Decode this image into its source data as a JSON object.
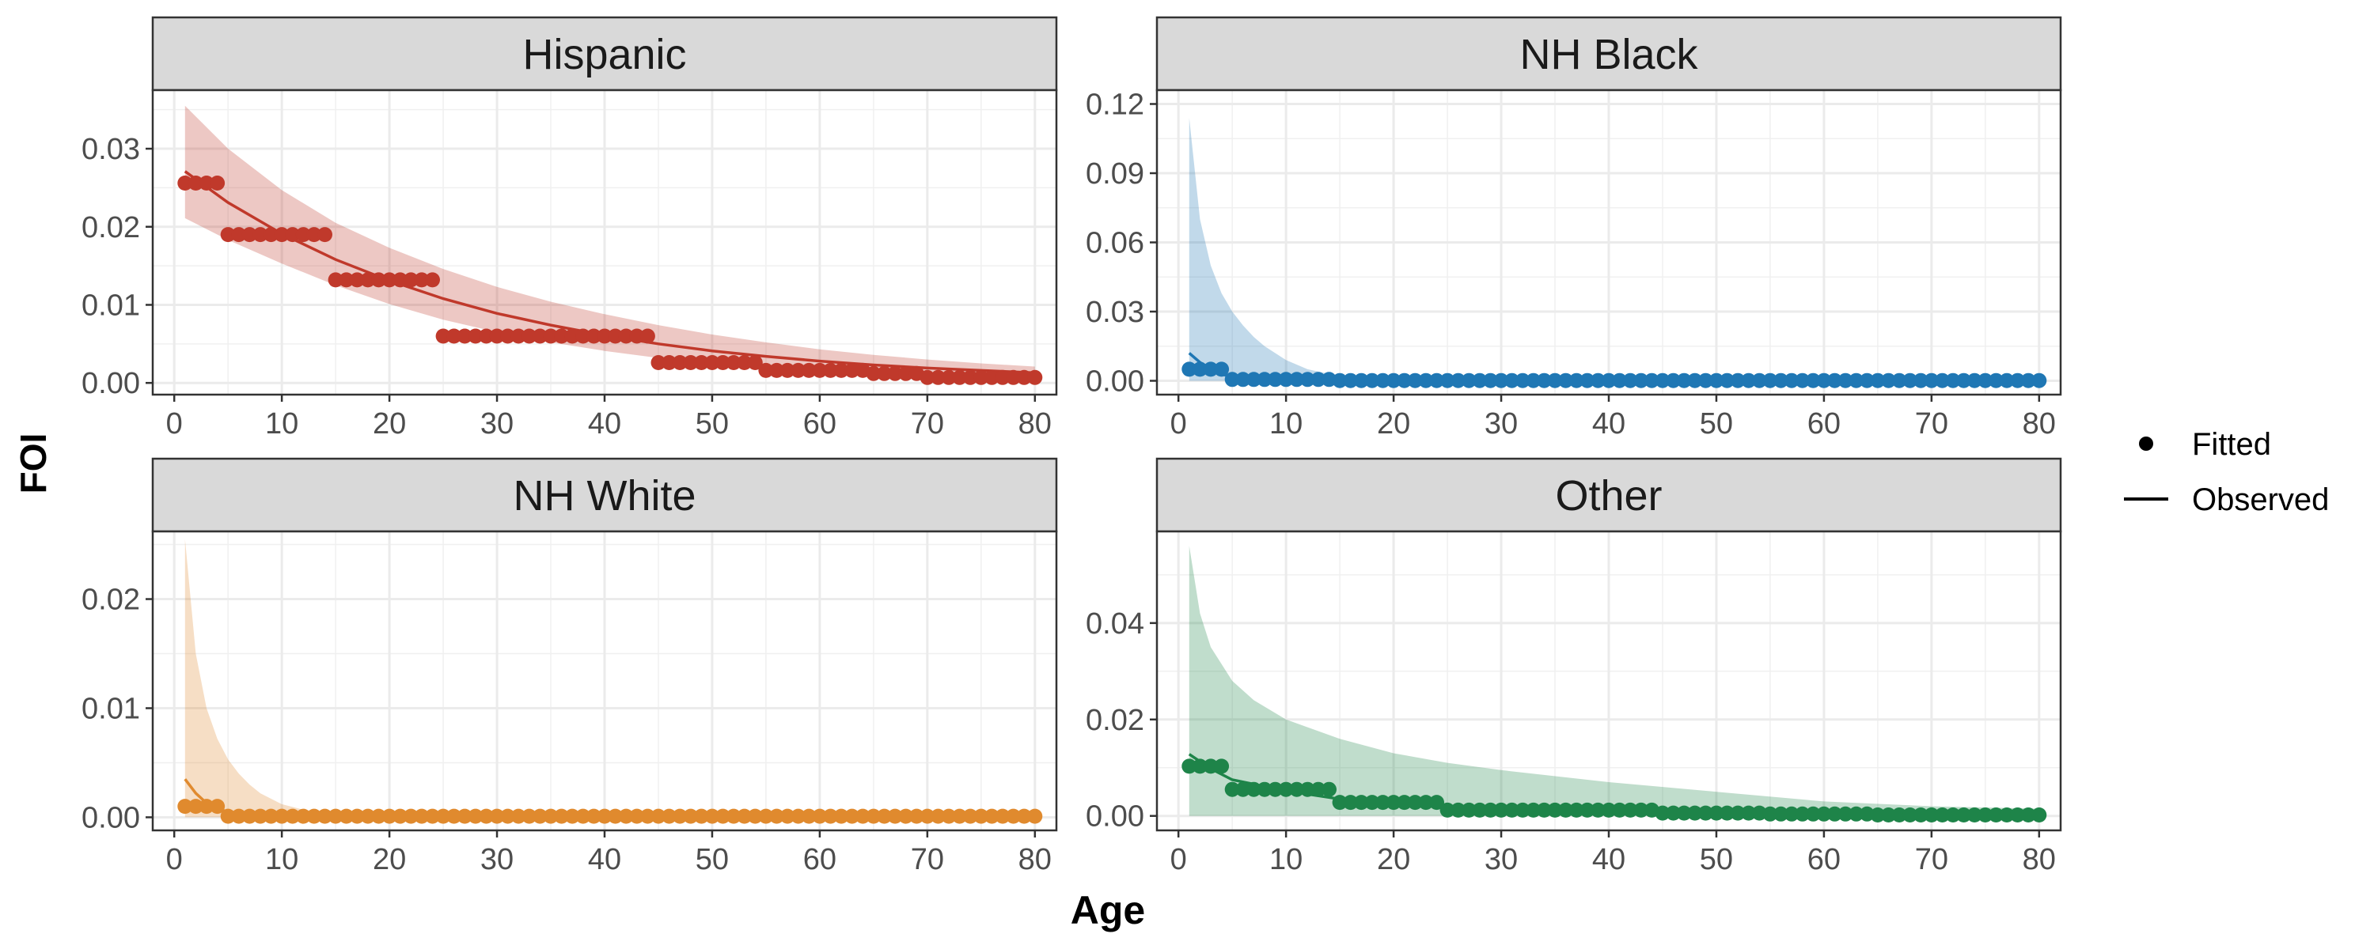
{
  "figure": {
    "ylabel": "FOI",
    "xlabel": "Age"
  },
  "legend": {
    "placement": "right",
    "items": [
      {
        "label": "Fitted",
        "glyph": "point"
      },
      {
        "label": "Observed",
        "glyph": "line"
      }
    ]
  },
  "chart_data": [
    {
      "type": "line",
      "facet": "Hispanic",
      "color": "#c0392b",
      "xlim": [
        -2,
        82
      ],
      "ylim": [
        -0.0015,
        0.0375
      ],
      "xticks": [
        0,
        10,
        20,
        30,
        40,
        50,
        60,
        70,
        80
      ],
      "yticks": [
        0.0,
        0.01,
        0.02,
        0.03
      ],
      "ytick_labels": [
        "0.00",
        "0.01",
        "0.02",
        "0.03"
      ],
      "grid": true,
      "fitted_steps": [
        {
          "from": 1,
          "to": 4,
          "value": 0.0256
        },
        {
          "from": 5,
          "to": 14,
          "value": 0.019
        },
        {
          "from": 15,
          "to": 24,
          "value": 0.0132
        },
        {
          "from": 25,
          "to": 44,
          "value": 0.006
        },
        {
          "from": 45,
          "to": 54,
          "value": 0.0026
        },
        {
          "from": 55,
          "to": 64,
          "value": 0.0016
        },
        {
          "from": 65,
          "to": 69,
          "value": 0.0012
        },
        {
          "from": 70,
          "to": 80,
          "value": 0.0007
        }
      ],
      "observed": {
        "x": [
          1,
          5,
          10,
          15,
          20,
          25,
          30,
          35,
          40,
          45,
          50,
          55,
          60,
          65,
          70,
          75,
          80
        ],
        "y": [
          0.0271,
          0.0231,
          0.0191,
          0.0158,
          0.0131,
          0.0108,
          0.0089,
          0.0074,
          0.0061,
          0.005,
          0.0041,
          0.0034,
          0.0028,
          0.0023,
          0.0019,
          0.0016,
          0.0013
        ]
      },
      "interval": {
        "x": [
          1,
          5,
          10,
          15,
          20,
          25,
          30,
          35,
          40,
          45,
          50,
          55,
          60,
          65,
          70,
          75,
          80
        ],
        "lower": [
          0.0211,
          0.0183,
          0.0153,
          0.0125,
          0.0101,
          0.0081,
          0.0065,
          0.0052,
          0.0041,
          0.0032,
          0.0025,
          0.0019,
          0.0014,
          0.001,
          0.0007,
          0.0005,
          0.0003
        ],
        "upper": [
          0.0355,
          0.03,
          0.0247,
          0.0205,
          0.0173,
          0.0146,
          0.0123,
          0.0104,
          0.0088,
          0.0074,
          0.0062,
          0.0052,
          0.0043,
          0.0036,
          0.003,
          0.0025,
          0.0021
        ]
      }
    },
    {
      "type": "line",
      "facet": "NH Black",
      "color": "#1f77b4",
      "xlim": [
        -2,
        82
      ],
      "ylim": [
        -0.006,
        0.126
      ],
      "xticks": [
        0,
        10,
        20,
        30,
        40,
        50,
        60,
        70,
        80
      ],
      "yticks": [
        0.0,
        0.03,
        0.06,
        0.09,
        0.12
      ],
      "ytick_labels": [
        "0.00",
        "0.03",
        "0.06",
        "0.09",
        "0.12"
      ],
      "grid": true,
      "fitted_steps": [
        {
          "from": 1,
          "to": 4,
          "value": 0.005
        },
        {
          "from": 5,
          "to": 14,
          "value": 0.0006
        },
        {
          "from": 15,
          "to": 80,
          "value": 0.0001
        }
      ],
      "observed": {
        "x": [
          1,
          2,
          3,
          4,
          5,
          7,
          10,
          15,
          20,
          30,
          40,
          50,
          60,
          70,
          80
        ],
        "y": [
          0.012,
          0.008,
          0.005,
          0.003,
          0.0015,
          0.001,
          0.0007,
          0.0003,
          0.0002,
          0.0001,
          0.0001,
          0.0001,
          0.0001,
          0.0001,
          0.0001
        ]
      },
      "interval": {
        "x": [
          1,
          2,
          3,
          4,
          5,
          6,
          7,
          8,
          10,
          12,
          15,
          20,
          30,
          40,
          50,
          60,
          70,
          80
        ],
        "lower": [
          0,
          0,
          0,
          0,
          0,
          0,
          0,
          0,
          0,
          0,
          0,
          0,
          0,
          0,
          0,
          0,
          0,
          0
        ],
        "upper": [
          0.114,
          0.07,
          0.05,
          0.038,
          0.03,
          0.024,
          0.019,
          0.015,
          0.009,
          0.005,
          0.002,
          0.001,
          0.0004,
          0.0002,
          0.0001,
          0.0001,
          0.0001,
          0.0001
        ]
      }
    },
    {
      "type": "line",
      "facet": "NH White",
      "color": "#e08a2e",
      "xlim": [
        -2,
        82
      ],
      "ylim": [
        -0.0012,
        0.0262
      ],
      "xticks": [
        0,
        10,
        20,
        30,
        40,
        50,
        60,
        70,
        80
      ],
      "yticks": [
        0.0,
        0.01,
        0.02
      ],
      "ytick_labels": [
        "0.00",
        "0.01",
        "0.02"
      ],
      "grid": true,
      "fitted_steps": [
        {
          "from": 1,
          "to": 4,
          "value": 0.001
        },
        {
          "from": 5,
          "to": 80,
          "value": 0.0001
        }
      ],
      "observed": {
        "x": [
          1,
          2,
          3,
          4,
          5,
          7,
          10,
          15,
          20,
          30,
          40,
          50,
          60,
          70,
          80
        ],
        "y": [
          0.0035,
          0.0022,
          0.0013,
          0.0008,
          0.0005,
          0.0003,
          0.0002,
          0.0001,
          0.0001,
          0.0001,
          0.0001,
          0.0001,
          0.0001,
          0.0001,
          0.0001
        ]
      },
      "interval": {
        "x": [
          1,
          2,
          3,
          4,
          5,
          6,
          7,
          8,
          10,
          12,
          15,
          20,
          30,
          40,
          50,
          60,
          70,
          80
        ],
        "lower": [
          0,
          0,
          0,
          0,
          0,
          0,
          0,
          0,
          0,
          0,
          0,
          0,
          0,
          0,
          0,
          0,
          0,
          0
        ],
        "upper": [
          0.0255,
          0.015,
          0.01,
          0.0072,
          0.0053,
          0.004,
          0.003,
          0.0022,
          0.0012,
          0.0007,
          0.0003,
          0.0001,
          0.0001,
          0.0001,
          0.0001,
          0.0001,
          0.0001,
          0.0001
        ]
      }
    },
    {
      "type": "line",
      "facet": "Other",
      "color": "#1e8449",
      "xlim": [
        -2,
        82
      ],
      "ylim": [
        -0.003,
        0.059
      ],
      "xticks": [
        0,
        10,
        20,
        30,
        40,
        50,
        60,
        70,
        80
      ],
      "yticks": [
        0.0,
        0.02,
        0.04
      ],
      "ytick_labels": [
        "0.00",
        "0.02",
        "0.04"
      ],
      "grid": true,
      "fitted_steps": [
        {
          "from": 1,
          "to": 4,
          "value": 0.0103
        },
        {
          "from": 5,
          "to": 14,
          "value": 0.0055
        },
        {
          "from": 15,
          "to": 24,
          "value": 0.0028
        },
        {
          "from": 25,
          "to": 44,
          "value": 0.0012
        },
        {
          "from": 45,
          "to": 54,
          "value": 0.0006
        },
        {
          "from": 55,
          "to": 64,
          "value": 0.0004
        },
        {
          "from": 65,
          "to": 80,
          "value": 0.0002
        }
      ],
      "observed": {
        "x": [
          1,
          3,
          5,
          10,
          15,
          20,
          30,
          40,
          50,
          60,
          70,
          80
        ],
        "y": [
          0.0128,
          0.0098,
          0.0075,
          0.0052,
          0.0035,
          0.0024,
          0.0013,
          0.0008,
          0.0005,
          0.0003,
          0.0002,
          0.0002
        ]
      },
      "interval": {
        "x": [
          1,
          2,
          3,
          5,
          7,
          10,
          15,
          20,
          25,
          30,
          40,
          50,
          60,
          70,
          80
        ],
        "lower": [
          0,
          0,
          0,
          0,
          0,
          0,
          0,
          0,
          0,
          0,
          0,
          0,
          0,
          0,
          0
        ],
        "upper": [
          0.056,
          0.042,
          0.035,
          0.028,
          0.024,
          0.02,
          0.016,
          0.013,
          0.011,
          0.0095,
          0.007,
          0.005,
          0.003,
          0.002,
          0.0015
        ]
      }
    }
  ]
}
